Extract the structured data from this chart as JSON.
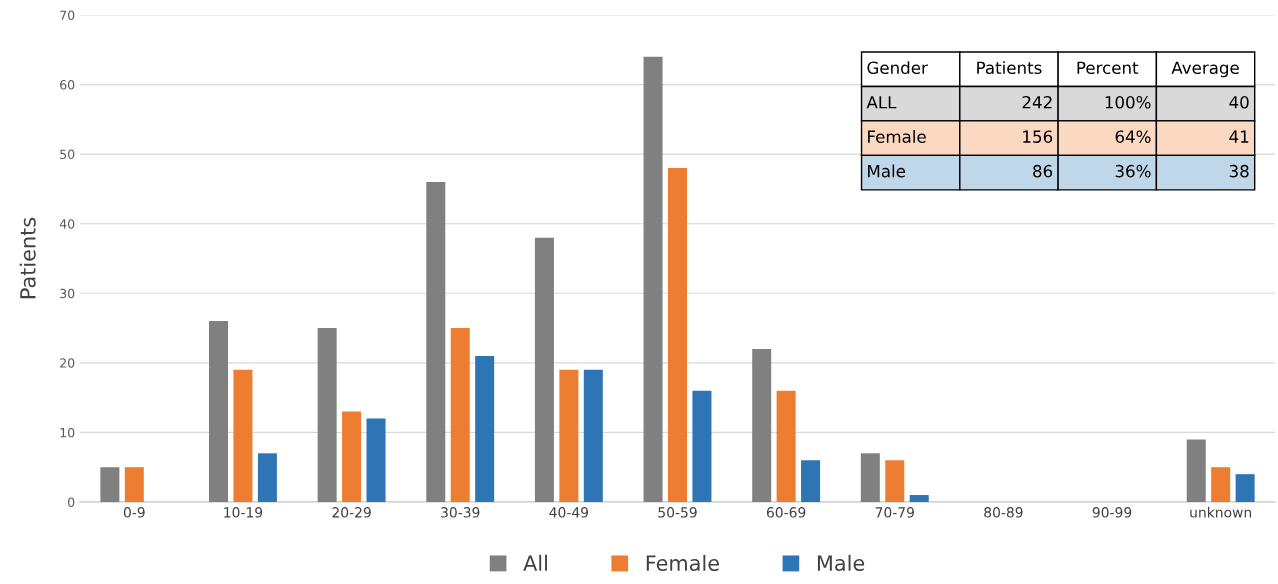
{
  "chart_data": {
    "type": "bar",
    "ylabel": "Patients",
    "categories": [
      "0-9",
      "10-19",
      "20-29",
      "30-39",
      "40-49",
      "50-59",
      "60-69",
      "70-79",
      "80-89",
      "90-99",
      "unknown"
    ],
    "series": [
      {
        "name": "All",
        "color": "#808080",
        "values": [
          5,
          26,
          25,
          46,
          38,
          64,
          22,
          7,
          0,
          0,
          9
        ]
      },
      {
        "name": "Female",
        "color": "#ed7d31",
        "values": [
          5,
          19,
          13,
          25,
          19,
          48,
          16,
          6,
          0,
          0,
          5
        ]
      },
      {
        "name": "Male",
        "color": "#2e75b6",
        "values": [
          0,
          7,
          12,
          21,
          19,
          16,
          6,
          1,
          0,
          0,
          4
        ]
      }
    ],
    "ylim": [
      0,
      70
    ],
    "yticks": [
      0,
      10,
      20,
      30,
      40,
      50,
      60,
      70
    ],
    "grid": "y",
    "legend": "bottom",
    "annotations": [
      "Gender",
      "Patients",
      "Percent",
      "Average",
      "ALL",
      "242",
      "100%",
      "40",
      "Female",
      "156",
      "64%",
      "41",
      "Male",
      "86",
      "36%",
      "38"
    ]
  }
}
